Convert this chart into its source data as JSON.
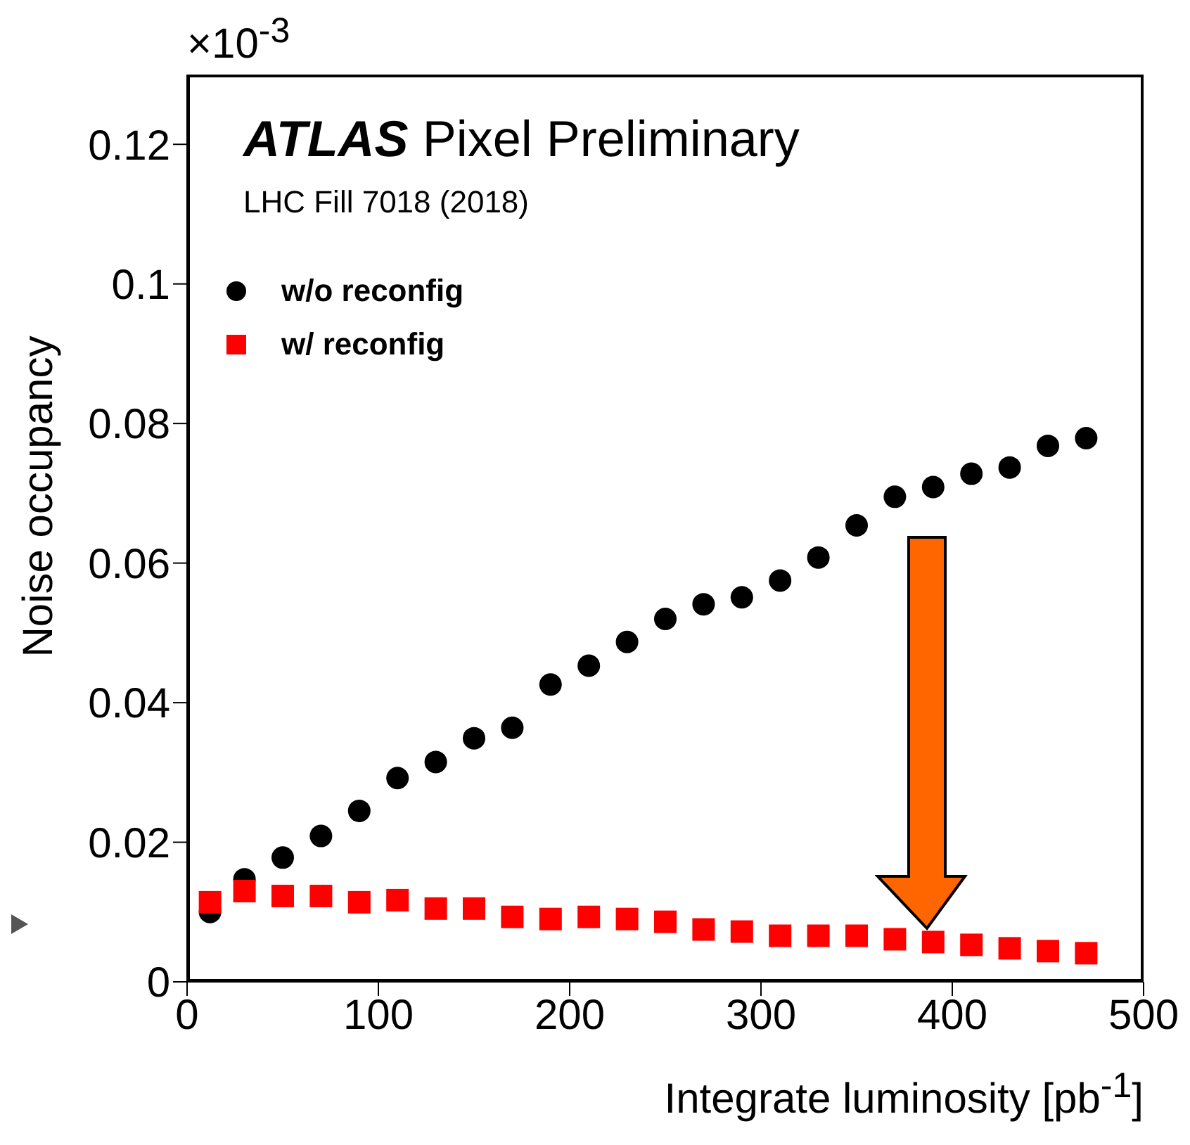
{
  "chart_data": {
    "type": "scatter",
    "title": "ATLAS Pixel Preliminary",
    "subtitle": "LHC Fill 7018 (2018)",
    "xlabel": "Integrate luminosity [pb$^{-1}$]",
    "ylabel": "Noise occupancy",
    "annotations": [
      "×10$^{-3}$"
    ],
    "x": [
      12,
      30,
      50,
      70,
      90,
      110,
      130,
      150,
      170,
      190,
      210,
      230,
      250,
      270,
      290,
      310,
      330,
      350,
      370,
      390,
      410,
      430,
      450,
      470
    ],
    "series": [
      {
        "name": "w/o reconfig",
        "color": "#000000",
        "marker": "circle",
        "values": [
          0.01,
          0.0147,
          0.0178,
          0.0209,
          0.0245,
          0.0292,
          0.0315,
          0.0349,
          0.0364,
          0.0426,
          0.0453,
          0.0487,
          0.052,
          0.0541,
          0.0551,
          0.0575,
          0.0608,
          0.0654,
          0.0695,
          0.0709,
          0.0728,
          0.0737,
          0.0768,
          0.0779
        ]
      },
      {
        "name": "w/ reconfig",
        "color": "#ff0000",
        "marker": "square",
        "values": [
          0.0114,
          0.013,
          0.0123,
          0.0123,
          0.0114,
          0.0117,
          0.0105,
          0.0105,
          0.0093,
          0.009,
          0.0093,
          0.009,
          0.0086,
          0.0075,
          0.0072,
          0.0066,
          0.0066,
          0.0066,
          0.0061,
          0.0057,
          0.0053,
          0.0048,
          0.0044,
          0.0041
        ]
      }
    ],
    "xlim": [
      0,
      500
    ],
    "xticks": [
      0,
      100,
      200,
      300,
      400,
      500
    ],
    "ylim": [
      0,
      0.13
    ],
    "yticks": [
      0,
      0.02,
      0.04,
      0.06,
      0.08,
      0.1,
      0.12
    ],
    "grid": false,
    "legend": "top left"
  }
}
